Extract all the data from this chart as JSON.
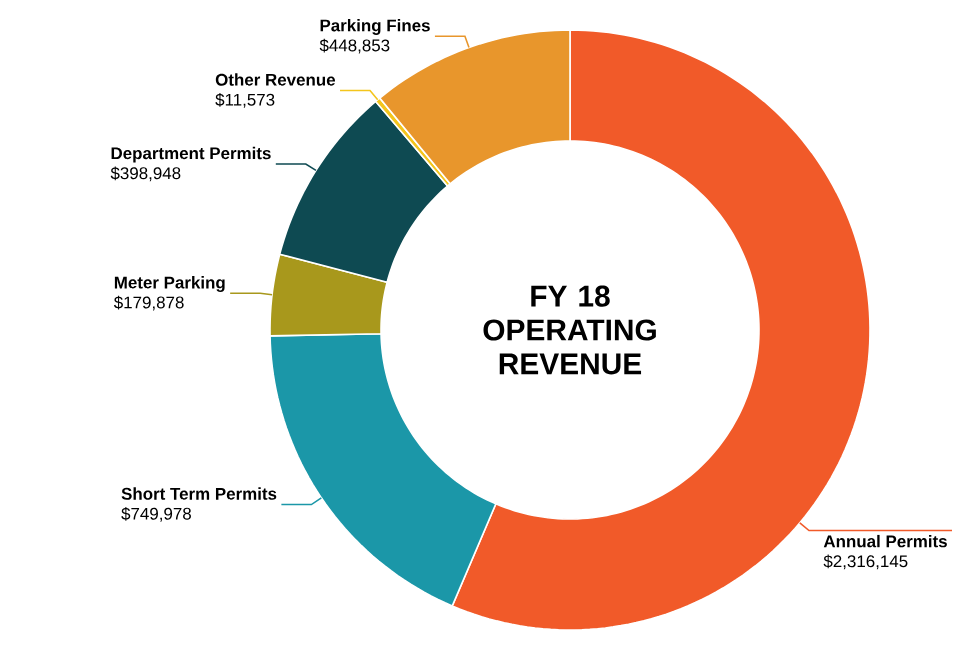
{
  "chart_data": {
    "type": "donut",
    "title": "FY 18 OPERATING REVENUE",
    "categories": [
      "Annual Permits",
      "Short Term Permits",
      "Meter Parking",
      "Department Permits",
      "Other Revenue",
      "Parking Fines"
    ],
    "values": [
      2316145,
      749978,
      179878,
      398948,
      11573,
      448853
    ],
    "value_labels": [
      "$2,316,145",
      "$749,978",
      "$179,878",
      "$398,948",
      "$11,573",
      "$448,853"
    ],
    "colors": [
      "#f15a29",
      "#1b97a8",
      "#a8981c",
      "#0e4a52",
      "#f4c51c",
      "#e8962c"
    ]
  }
}
